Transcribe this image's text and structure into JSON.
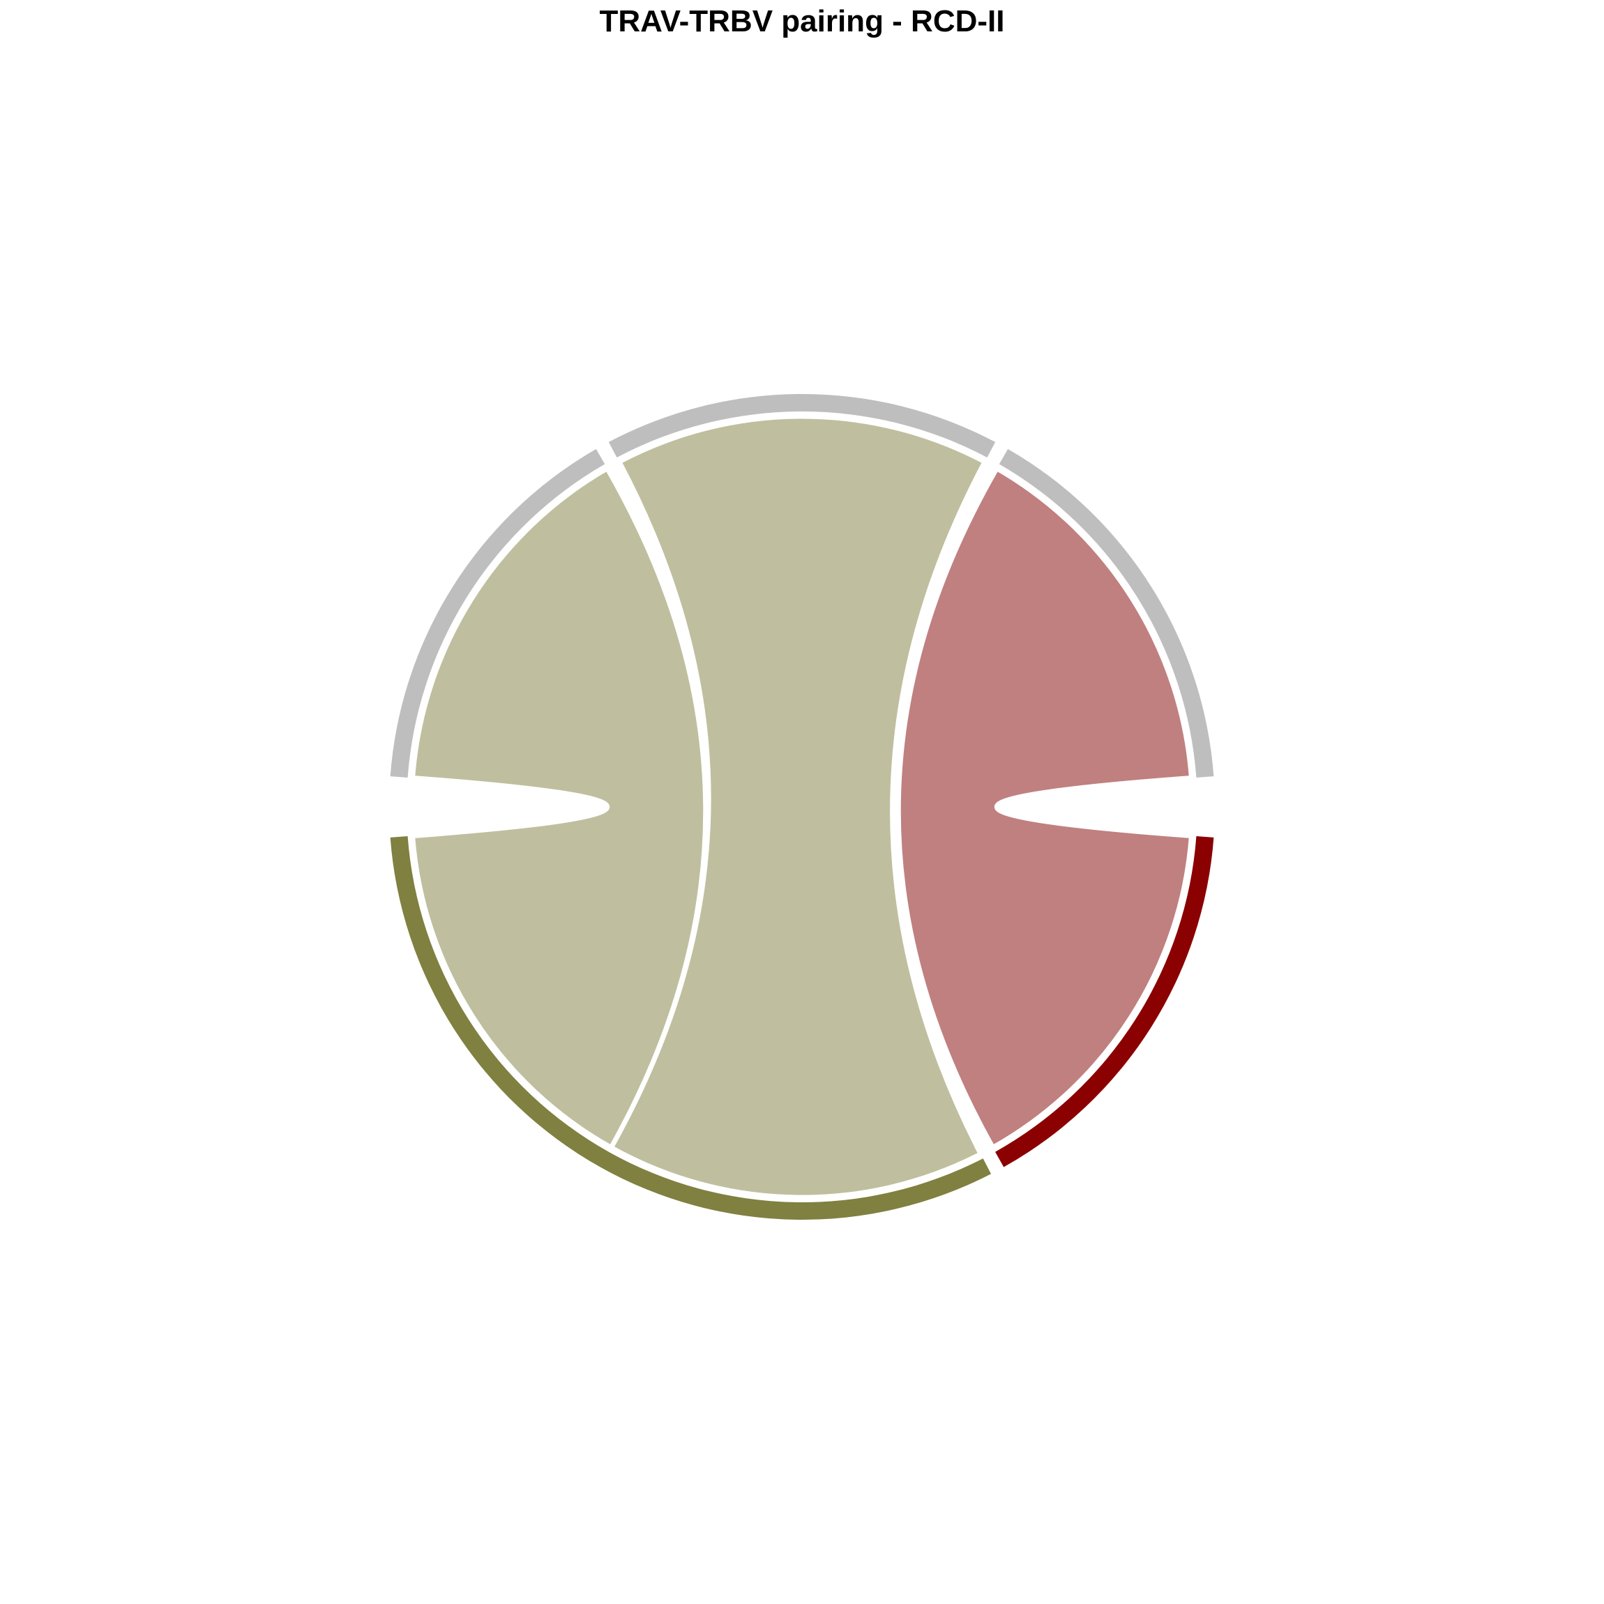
{
  "chart_data": {
    "type": "chord",
    "title": "TRAV-TRBV pairing - RCD-II",
    "sectors": [
      {
        "id": "trav-left",
        "group": "TRAV",
        "share": 0.25,
        "color": "#BEBEBE"
      },
      {
        "id": "trav-top",
        "group": "TRAV",
        "share": 0.25,
        "color": "#BEBEBE"
      },
      {
        "id": "trav-right",
        "group": "TRAV",
        "share": 0.25,
        "color": "#BEBEBE"
      },
      {
        "id": "trbv-1",
        "group": "TRBV",
        "share": 0.5,
        "color": "#808040"
      },
      {
        "id": "trbv-2",
        "group": "TRBV",
        "share": 0.25,
        "color": "#8B0000"
      }
    ],
    "links": [
      {
        "from": "trav-left",
        "to": "trbv-1",
        "value": 1,
        "color": "#BFBF9F"
      },
      {
        "from": "trav-top",
        "to": "trbv-1",
        "value": 1,
        "color": "#BFBF9F"
      },
      {
        "from": "trav-right",
        "to": "trbv-2",
        "value": 1,
        "color": "#C08080"
      }
    ]
  }
}
